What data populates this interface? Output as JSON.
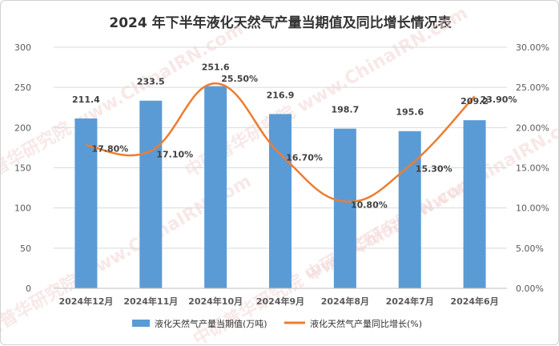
{
  "chart_data": {
    "type": "bar",
    "title": "2024 年下半年液化天然气产量当期值及同比增长情况表",
    "categories": [
      "2024年12月",
      "2024年11月",
      "2024年10月",
      "2024年9月",
      "2024年8月",
      "2024年7月",
      "2024年6月"
    ],
    "series": [
      {
        "name": "液化天然气产量当期值(万吨)",
        "type": "bar",
        "axis": "left",
        "values": [
          211.4,
          233.5,
          251.6,
          216.9,
          198.7,
          195.6,
          209.2
        ],
        "labels": [
          "211.4",
          "233.5",
          "251.6",
          "216.9",
          "198.7",
          "195.6",
          "209.2"
        ],
        "color": "#5b9bd5"
      },
      {
        "name": "液化天然气产量同比增长(%)",
        "type": "line",
        "axis": "right",
        "values": [
          17.8,
          17.1,
          25.5,
          16.7,
          10.8,
          15.3,
          23.9
        ],
        "labels": [
          "17.80%",
          "17.10%",
          "25.50%",
          "16.70%",
          "10.80%",
          "15.30%",
          "23.90%"
        ],
        "color": "#ed7d31"
      }
    ],
    "y_left": {
      "ylim": [
        0,
        300
      ],
      "ticks": [
        "0",
        "50",
        "100",
        "150",
        "200",
        "250",
        "300"
      ]
    },
    "y_right": {
      "ylim": [
        0,
        30
      ],
      "ticks": [
        "0.00%",
        "5.00%",
        "10.00%",
        "15.00%",
        "20.00%",
        "25.00%",
        "30.00%"
      ]
    },
    "grid": true,
    "legend": "bottom",
    "watermark": "中研普华研究院 www.ChinaIRN.com"
  }
}
